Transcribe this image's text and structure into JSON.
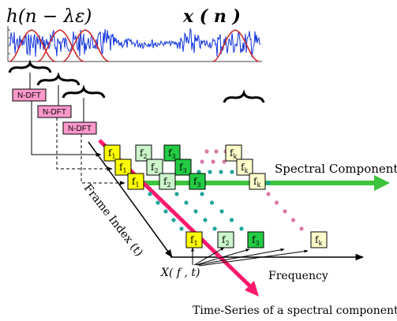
{
  "labels": {
    "window_fn": "h(n − λε)",
    "signal": "x ( n )",
    "ndft": "N-DFT",
    "spectral_components": "Spectral Components",
    "frame_index": "Frame Index (t)",
    "frequency": "Frequency",
    "xft": "X( f , t)",
    "time_series": "Time-Series of a spectral component"
  },
  "freq_bins": [
    {
      "main": "f",
      "sub": "1"
    },
    {
      "main": "f",
      "sub": "2"
    },
    {
      "main": "f",
      "sub": "3"
    },
    {
      "main": "f",
      "sub": "k"
    }
  ],
  "colors": {
    "yellow": "#ffff00",
    "light_green": "#ccf5cc",
    "green": "#22cc44",
    "cream": "#ffffcc",
    "pink_box": "#ff99cc",
    "pink_dot": "#d97aa8",
    "teal_dot": "#1ea59a",
    "green_arrow": "#3cc43c",
    "magenta_arrow": "#ff1a6e",
    "signal_blue": "#1133dd",
    "window_red": "#cc2222"
  }
}
